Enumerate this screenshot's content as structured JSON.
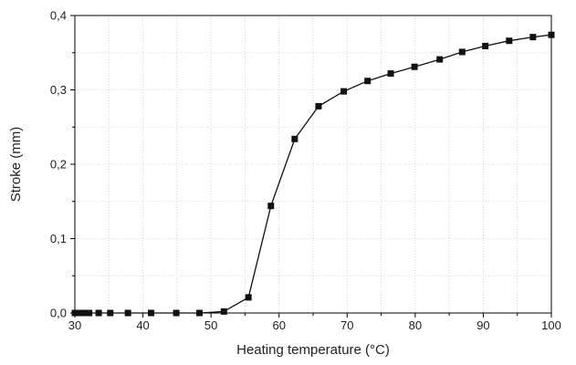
{
  "chart_data": {
    "type": "line",
    "title": "",
    "xlabel": "Heating temperature (°C)",
    "ylabel": "Stroke (mm)",
    "xlim": [
      30,
      100
    ],
    "ylim": [
      0,
      0.4
    ],
    "x_ticks": [
      30,
      40,
      50,
      60,
      70,
      80,
      90,
      100
    ],
    "x_tick_labels": [
      "30",
      "40",
      "50",
      "60",
      "70",
      "80",
      "90",
      "100"
    ],
    "y_ticks": [
      0,
      0.1,
      0.2,
      0.3,
      0.4
    ],
    "y_tick_labels": [
      "0,0",
      "0,1",
      "0,2",
      "0,3",
      "0,4"
    ],
    "grid": true,
    "grid_style": "dotted",
    "marker": "square",
    "series": [
      {
        "x": [
          30.0,
          30.7,
          31.4,
          32.1,
          33.5,
          35.2,
          37.8,
          41.2,
          44.9,
          48.3,
          51.9,
          55.5,
          58.8,
          62.3,
          65.8,
          69.5,
          73.0,
          76.4,
          79.9,
          83.6,
          86.9,
          90.3,
          93.8,
          97.3,
          100.0
        ],
        "y": [
          0.0,
          0.0,
          0.0,
          0.0,
          0.0,
          0.0,
          0.0,
          0.0,
          0.0,
          0.0,
          0.002,
          0.021,
          0.144,
          0.234,
          0.278,
          0.298,
          0.312,
          0.322,
          0.331,
          0.341,
          0.351,
          0.359,
          0.366,
          0.371,
          0.374
        ]
      }
    ]
  }
}
